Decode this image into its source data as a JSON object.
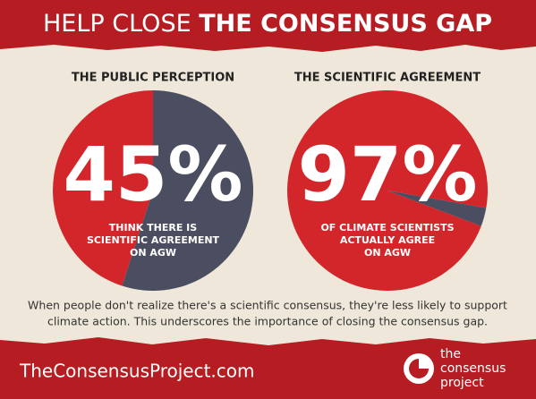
{
  "header": {
    "title_light": "HELP CLOSE",
    "title_bold": "THE CONSENSUS GAP"
  },
  "chart_data": [
    {
      "type": "pie",
      "title": "THE PUBLIC PERCEPTION",
      "values": [
        45,
        55
      ],
      "colors": [
        "#d3262a",
        "#4b4e60"
      ],
      "value_labels": [
        "45%",
        null
      ],
      "annotation": [
        "THINK THERE IS",
        "SCIENTIFIC AGREEMENT",
        "ON AGW"
      ]
    },
    {
      "type": "pie",
      "title": "THE SCIENTIFIC AGREEMENT",
      "values": [
        97,
        3
      ],
      "colors": [
        "#d3262a",
        "#4b4e60"
      ],
      "value_labels": [
        "97%",
        null
      ],
      "annotation": [
        "OF CLIMATE SCIENTISTS",
        "ACTUALLY AGREE",
        "ON AGW"
      ]
    }
  ],
  "caption": [
    "When people don't realize there's a scientific consensus, they're less likely to support",
    "climate action. This underscores the importance of closing the consensus gap."
  ],
  "footer": {
    "url": "TheConsensusProject.com",
    "logo": [
      "the",
      "consensus",
      "project"
    ]
  }
}
